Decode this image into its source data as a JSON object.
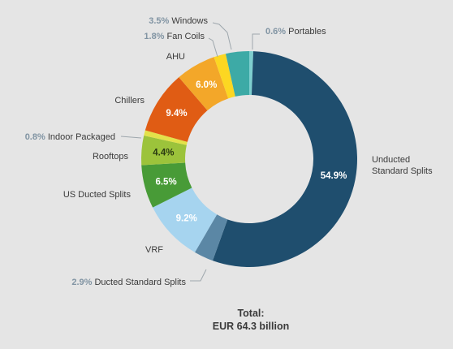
{
  "chart_data": {
    "type": "donut",
    "title": "",
    "unit": "%",
    "total": {
      "heading": "Total:",
      "value_text": "EUR 64.3 billion"
    },
    "slices": [
      {
        "label": "Portables",
        "value": 0.6,
        "value_label": "0.6%",
        "color": "#7ecfcf"
      },
      {
        "label": "Unducted Standard Splits",
        "value": 54.9,
        "value_label": "54.9%",
        "color": "#1f4e6e"
      },
      {
        "label": "Ducted Standard Splits",
        "value": 2.9,
        "value_label": "2.9%",
        "color": "#5b87a5"
      },
      {
        "label": "VRF",
        "value": 9.2,
        "value_label": "9.2%",
        "color": "#a6d4ef"
      },
      {
        "label": "US Ducted Splits",
        "value": 6.5,
        "value_label": "6.5%",
        "color": "#489b37"
      },
      {
        "label": "Rooftops",
        "value": 4.4,
        "value_label": "4.4%",
        "color": "#9cc33b"
      },
      {
        "label": "Indoor Packaged",
        "value": 0.8,
        "value_label": "0.8%",
        "color": "#e3e24a"
      },
      {
        "label": "Chillers",
        "value": 9.4,
        "value_label": "9.4%",
        "color": "#e05c14"
      },
      {
        "label": "AHU",
        "value": 6.0,
        "value_label": "6.0%",
        "color": "#f3a729"
      },
      {
        "label": "Fan Coils",
        "value": 1.8,
        "value_label": "1.8%",
        "color": "#fcd722"
      },
      {
        "label": "Windows",
        "value": 3.5,
        "value_label": "3.5%",
        "color": "#3daaa6"
      }
    ],
    "colors": {
      "label_text": "#3a3a3a",
      "outside_value_text": "#8194a3",
      "leader_line": "#9ea7ad",
      "inside_value_light": "#ffffff",
      "inside_value_dark": "#2a3a12"
    }
  }
}
